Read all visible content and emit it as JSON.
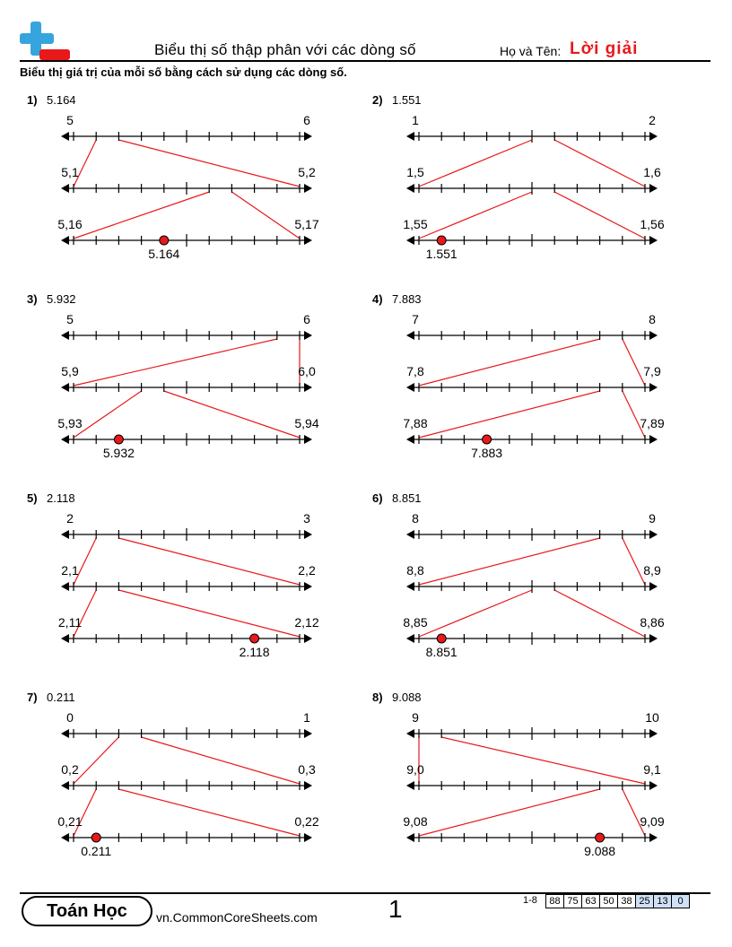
{
  "header": {
    "title": "Biểu thị số thập phân với các dòng số",
    "name_label": "Họ và Tên:",
    "name_value": "Lời giải",
    "instructions": "Biểu thị giá trị của mỗi số bằng cách sử dụng các dòng số."
  },
  "colors": {
    "accent": "#e8191b",
    "logo_blue": "#36a5dd",
    "logo_red": "#e8191b"
  },
  "problems": [
    {
      "number": "1)",
      "value": "5.164",
      "labels": [
        [
          "5",
          "6"
        ],
        [
          "5,1",
          "5,2"
        ],
        [
          "5,16",
          "5,17"
        ]
      ],
      "digits": [
        1,
        6,
        4
      ]
    },
    {
      "number": "2)",
      "value": "1.551",
      "labels": [
        [
          "1",
          "2"
        ],
        [
          "1,5",
          "1,6"
        ],
        [
          "1,55",
          "1,56"
        ]
      ],
      "digits": [
        5,
        5,
        1
      ]
    },
    {
      "number": "3)",
      "value": "5.932",
      "labels": [
        [
          "5",
          "6"
        ],
        [
          "5,9",
          "6,0"
        ],
        [
          "5,93",
          "5,94"
        ]
      ],
      "digits": [
        9,
        3,
        2
      ]
    },
    {
      "number": "4)",
      "value": "7.883",
      "labels": [
        [
          "7",
          "8"
        ],
        [
          "7,8",
          "7,9"
        ],
        [
          "7,88",
          "7,89"
        ]
      ],
      "digits": [
        8,
        8,
        3
      ]
    },
    {
      "number": "5)",
      "value": "2.118",
      "labels": [
        [
          "2",
          "3"
        ],
        [
          "2,1",
          "2,2"
        ],
        [
          "2,11",
          "2,12"
        ]
      ],
      "digits": [
        1,
        1,
        8
      ]
    },
    {
      "number": "6)",
      "value": "8.851",
      "labels": [
        [
          "8",
          "9"
        ],
        [
          "8,8",
          "8,9"
        ],
        [
          "8,85",
          "8,86"
        ]
      ],
      "digits": [
        8,
        5,
        1
      ]
    },
    {
      "number": "7)",
      "value": "0.211",
      "labels": [
        [
          "0",
          "1"
        ],
        [
          "0,2",
          "0,3"
        ],
        [
          "0,21",
          "0,22"
        ]
      ],
      "digits": [
        2,
        1,
        1
      ]
    },
    {
      "number": "8)",
      "value": "9.088",
      "labels": [
        [
          "9",
          "10"
        ],
        [
          "9,0",
          "9,1"
        ],
        [
          "9,08",
          "9,09"
        ]
      ],
      "digits": [
        0,
        8,
        8
      ]
    }
  ],
  "footer": {
    "brand": "Toán Học",
    "site": "vn.CommonCoreSheets.com",
    "page": "1",
    "score_range": "1-8",
    "scores": [
      "88",
      "75",
      "63",
      "50",
      "38",
      "25",
      "13",
      "0"
    ],
    "highlighted_scores": [
      "25",
      "13",
      "0"
    ]
  }
}
